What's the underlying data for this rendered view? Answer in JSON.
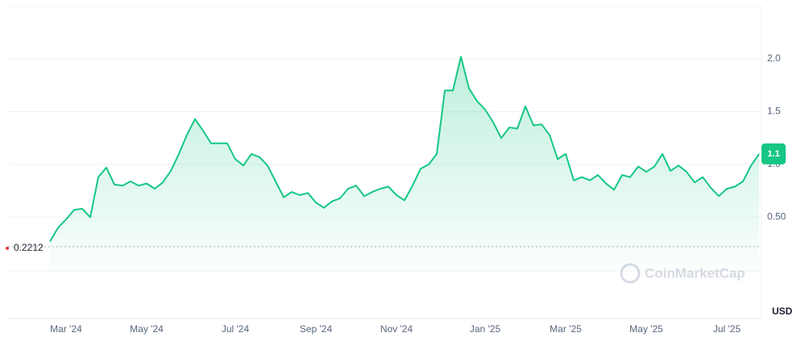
{
  "chart_data": {
    "type": "line",
    "color": "#16c784",
    "grid": true,
    "categories": [
      null,
      null,
      "Mar '24",
      null,
      null,
      null,
      null,
      null,
      null,
      null,
      null,
      null,
      "May '24",
      null,
      null,
      null,
      null,
      null,
      null,
      null,
      null,
      null,
      null,
      "Jul '24",
      null,
      null,
      null,
      null,
      null,
      null,
      null,
      null,
      null,
      "Sep '24",
      null,
      null,
      null,
      null,
      null,
      null,
      null,
      null,
      null,
      "Nov '24",
      null,
      null,
      null,
      null,
      null,
      null,
      null,
      null,
      null,
      null,
      "Jan '25",
      null,
      null,
      null,
      null,
      null,
      null,
      null,
      null,
      null,
      "Mar '25",
      null,
      null,
      null,
      null,
      null,
      null,
      null,
      null,
      null,
      "May '25",
      null,
      null,
      null,
      null,
      null,
      null,
      null,
      null,
      null,
      "Jul '25",
      null,
      null,
      null,
      null
    ],
    "values": [
      0.27,
      0.4,
      0.48,
      0.57,
      0.58,
      0.5,
      0.88,
      0.97,
      0.81,
      0.8,
      0.84,
      0.8,
      0.82,
      0.77,
      0.83,
      0.94,
      1.1,
      1.28,
      1.43,
      1.32,
      1.2,
      1.2,
      1.2,
      1.05,
      0.99,
      1.1,
      1.07,
      0.99,
      0.84,
      0.69,
      0.74,
      0.71,
      0.73,
      0.64,
      0.59,
      0.65,
      0.68,
      0.77,
      0.8,
      0.7,
      0.74,
      0.77,
      0.79,
      0.71,
      0.66,
      0.8,
      0.96,
      1.0,
      1.1,
      1.7,
      1.7,
      2.02,
      1.72,
      1.6,
      1.52,
      1.4,
      1.25,
      1.35,
      1.34,
      1.55,
      1.37,
      1.38,
      1.28,
      1.05,
      1.1,
      0.85,
      0.88,
      0.85,
      0.9,
      0.82,
      0.76,
      0.9,
      0.88,
      0.98,
      0.93,
      0.98,
      1.1,
      0.94,
      0.99,
      0.93,
      0.83,
      0.88,
      0.78,
      0.7,
      0.77,
      0.79,
      0.84,
      0.99,
      1.1
    ],
    "ylim": [
      0,
      2.5
    ],
    "yticks": [
      {
        "value": 0.5,
        "label": "0.50"
      },
      {
        "value": 1,
        "label": "1.0"
      },
      1.5,
      {
        "value": 2,
        "label": "2.0"
      }
    ],
    "start_price": 0.2212,
    "last_price": 1.1,
    "watermark": "CoinMarketCap",
    "currency": "USD"
  }
}
